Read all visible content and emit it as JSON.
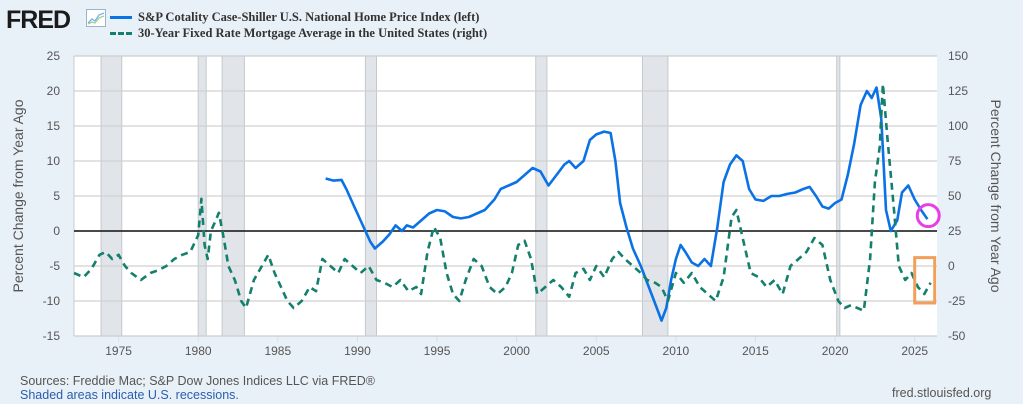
{
  "header": {
    "logo_text": "FRED",
    "logo_icon": "line-chart-icon",
    "legend": [
      {
        "label": "S&P Cotality Case-Shiller U.S. National Home Price Index (left)",
        "color": "#0b72e6",
        "style": "solid"
      },
      {
        "label": "30-Year Fixed Rate Mortgage Average in the United States (right)",
        "color": "#137f6c",
        "style": "dashed"
      }
    ]
  },
  "footer": {
    "sources": "Sources: Freddie Mac; S&P Dow Jones Indices LLC via FRED®",
    "shading_note": "Shaded areas indicate U.S. recessions.",
    "site": "fred.stlouisfed.org"
  },
  "annotations": [
    {
      "type": "circle",
      "color": "#e83ee8",
      "near": "home price index latest value (~2025.8, ~2%)"
    },
    {
      "type": "rectangle",
      "color": "#f0a05a",
      "near": "mortgage rate latest values (~2025.5-2026, ~-12%)"
    }
  ],
  "chart_data": {
    "type": "line",
    "title": "",
    "xlabel": "",
    "ylabel_left": "Percent Change from Year Ago",
    "ylabel_right": "Percent Change from Year Ago",
    "xlim": [
      1972.2,
      2026.4
    ],
    "ylim_left": [
      -15,
      25
    ],
    "ylim_right": [
      -50,
      150
    ],
    "x_ticks": [
      1975,
      1980,
      1985,
      1990,
      1995,
      2000,
      2005,
      2010,
      2015,
      2020,
      2025
    ],
    "y_ticks_left": [
      -15,
      -10,
      -5,
      0,
      5,
      10,
      15,
      20,
      25
    ],
    "y_ticks_right": [
      -50,
      -25,
      0,
      25,
      50,
      75,
      100,
      125,
      150
    ],
    "grid": true,
    "zero_line_left": 0,
    "legend_position": "top-left",
    "recessions": [
      [
        1973.9,
        1975.2
      ],
      [
        1980.0,
        1980.5
      ],
      [
        1981.5,
        1982.9
      ],
      [
        1990.5,
        1991.2
      ],
      [
        2001.2,
        2001.9
      ],
      [
        2007.9,
        2009.5
      ],
      [
        2020.1,
        2020.3
      ]
    ],
    "series": [
      {
        "name": "S&P Cotality Case-Shiller U.S. National Home Price Index (left)",
        "axis": "left",
        "x": [
          1988.0,
          1988.5,
          1989.0,
          1989.3,
          1989.8,
          1990.3,
          1990.8,
          1991.1,
          1991.6,
          1992.0,
          1992.4,
          1992.8,
          1993.1,
          1993.5,
          1994.0,
          1994.5,
          1995.0,
          1995.5,
          1996.0,
          1996.5,
          1997.0,
          1997.5,
          1998.0,
          1998.6,
          1999.0,
          1999.5,
          2000.0,
          2000.5,
          2001.0,
          2001.5,
          2002.0,
          2002.5,
          2003.0,
          2003.3,
          2003.7,
          2004.2,
          2004.6,
          2005.0,
          2005.5,
          2005.9,
          2006.2,
          2006.5,
          2006.9,
          2007.3,
          2007.8,
          2008.3,
          2008.8,
          2009.1,
          2009.4,
          2009.7,
          2010.0,
          2010.3,
          2010.6,
          2011.0,
          2011.4,
          2011.8,
          2012.2,
          2012.6,
          2013.0,
          2013.4,
          2013.8,
          2014.2,
          2014.6,
          2015.0,
          2015.5,
          2016.0,
          2016.5,
          2017.0,
          2017.5,
          2018.0,
          2018.4,
          2018.8,
          2019.2,
          2019.6,
          2020.0,
          2020.4,
          2020.8,
          2021.2,
          2021.6,
          2022.0,
          2022.3,
          2022.6,
          2022.9,
          2023.2,
          2023.5,
          2023.9,
          2024.2,
          2024.6,
          2025.0,
          2025.4,
          2025.8
        ],
        "values": [
          7.5,
          7.2,
          7.3,
          6.0,
          3.5,
          1.0,
          -1.5,
          -2.5,
          -1.5,
          -0.5,
          0.8,
          0.0,
          0.8,
          0.5,
          1.5,
          2.5,
          3.0,
          2.8,
          2.0,
          1.8,
          2.0,
          2.5,
          3.0,
          4.5,
          6.0,
          6.5,
          7.0,
          8.0,
          9.0,
          8.5,
          6.5,
          8.0,
          9.5,
          10.0,
          9.0,
          10.0,
          13.0,
          13.8,
          14.2,
          14.0,
          10.0,
          4.0,
          0.5,
          -2.5,
          -5.0,
          -8.0,
          -11.0,
          -12.8,
          -11.0,
          -7.0,
          -4.0,
          -2.0,
          -3.0,
          -4.5,
          -5.0,
          -4.0,
          -5.0,
          0.5,
          7.0,
          9.5,
          10.8,
          10.0,
          6.0,
          4.5,
          4.3,
          5.0,
          5.0,
          5.3,
          5.5,
          6.0,
          6.3,
          5.0,
          3.5,
          3.2,
          4.0,
          4.5,
          8.0,
          12.5,
          18.0,
          20.0,
          19.0,
          20.5,
          16.0,
          3.0,
          0.0,
          1.5,
          5.5,
          6.5,
          4.5,
          3.0,
          1.7
        ]
      },
      {
        "name": "30-Year Fixed Rate Mortgage Average in the United States (right)",
        "axis": "right",
        "x": [
          1972.2,
          1972.8,
          1973.3,
          1973.8,
          1974.2,
          1974.6,
          1975.0,
          1975.4,
          1975.8,
          1976.4,
          1977.0,
          1977.5,
          1978.0,
          1978.5,
          1979.0,
          1979.5,
          1980.0,
          1980.2,
          1980.4,
          1980.6,
          1980.8,
          1981.0,
          1981.3,
          1981.6,
          1981.9,
          1982.3,
          1982.7,
          1983.0,
          1983.5,
          1984.0,
          1984.4,
          1984.8,
          1985.2,
          1985.6,
          1986.0,
          1986.5,
          1987.0,
          1987.4,
          1987.8,
          1988.3,
          1988.8,
          1989.2,
          1989.7,
          1990.2,
          1990.7,
          1991.2,
          1991.7,
          1992.2,
          1992.7,
          1993.2,
          1993.7,
          1994.0,
          1994.4,
          1994.8,
          1995.2,
          1995.6,
          1996.0,
          1996.4,
          1996.8,
          1997.3,
          1997.8,
          1998.3,
          1998.8,
          1999.3,
          1999.7,
          2000.1,
          2000.5,
          2000.9,
          2001.3,
          2001.8,
          2002.3,
          2002.8,
          2003.3,
          2003.7,
          2004.2,
          2004.6,
          2005.0,
          2005.5,
          2006.0,
          2006.4,
          2006.8,
          2007.3,
          2007.8,
          2008.2,
          2008.7,
          2009.1,
          2009.5,
          2010.0,
          2010.5,
          2011.0,
          2011.5,
          2012.0,
          2012.5,
          2013.0,
          2013.5,
          2013.8,
          2014.2,
          2014.7,
          2015.2,
          2015.7,
          2016.2,
          2016.7,
          2017.2,
          2017.7,
          2018.2,
          2018.7,
          2019.2,
          2019.7,
          2020.2,
          2020.6,
          2021.0,
          2021.4,
          2021.8,
          2022.2,
          2022.5,
          2022.8,
          2023.0,
          2023.3,
          2023.7,
          2024.0,
          2024.4,
          2024.8,
          2025.2,
          2025.6,
          2026.0
        ],
        "values": [
          -5,
          -8,
          -2,
          8,
          10,
          5,
          8,
          0,
          -5,
          -10,
          -5,
          -3,
          0,
          5,
          8,
          10,
          22,
          48,
          15,
          5,
          25,
          30,
          38,
          20,
          0,
          -10,
          -25,
          -30,
          -10,
          0,
          8,
          -5,
          -15,
          -25,
          -30,
          -25,
          -15,
          -18,
          5,
          0,
          -5,
          5,
          0,
          -5,
          0,
          -10,
          -12,
          -15,
          -10,
          -18,
          -15,
          -20,
          10,
          28,
          20,
          -5,
          -20,
          -25,
          -10,
          5,
          0,
          -15,
          -20,
          -15,
          -5,
          15,
          18,
          5,
          -20,
          -15,
          -10,
          -15,
          -22,
          -5,
          -2,
          -10,
          0,
          -8,
          5,
          10,
          5,
          0,
          -5,
          -10,
          -12,
          -15,
          -25,
          -5,
          -12,
          -5,
          -15,
          -20,
          -25,
          -8,
          35,
          40,
          20,
          -5,
          -8,
          -15,
          -10,
          -20,
          0,
          5,
          10,
          20,
          15,
          -10,
          -25,
          -30,
          -28,
          -30,
          -32,
          5,
          60,
          85,
          130,
          90,
          40,
          0,
          -10,
          -5,
          -15,
          -20,
          -12
        ]
      }
    ]
  }
}
